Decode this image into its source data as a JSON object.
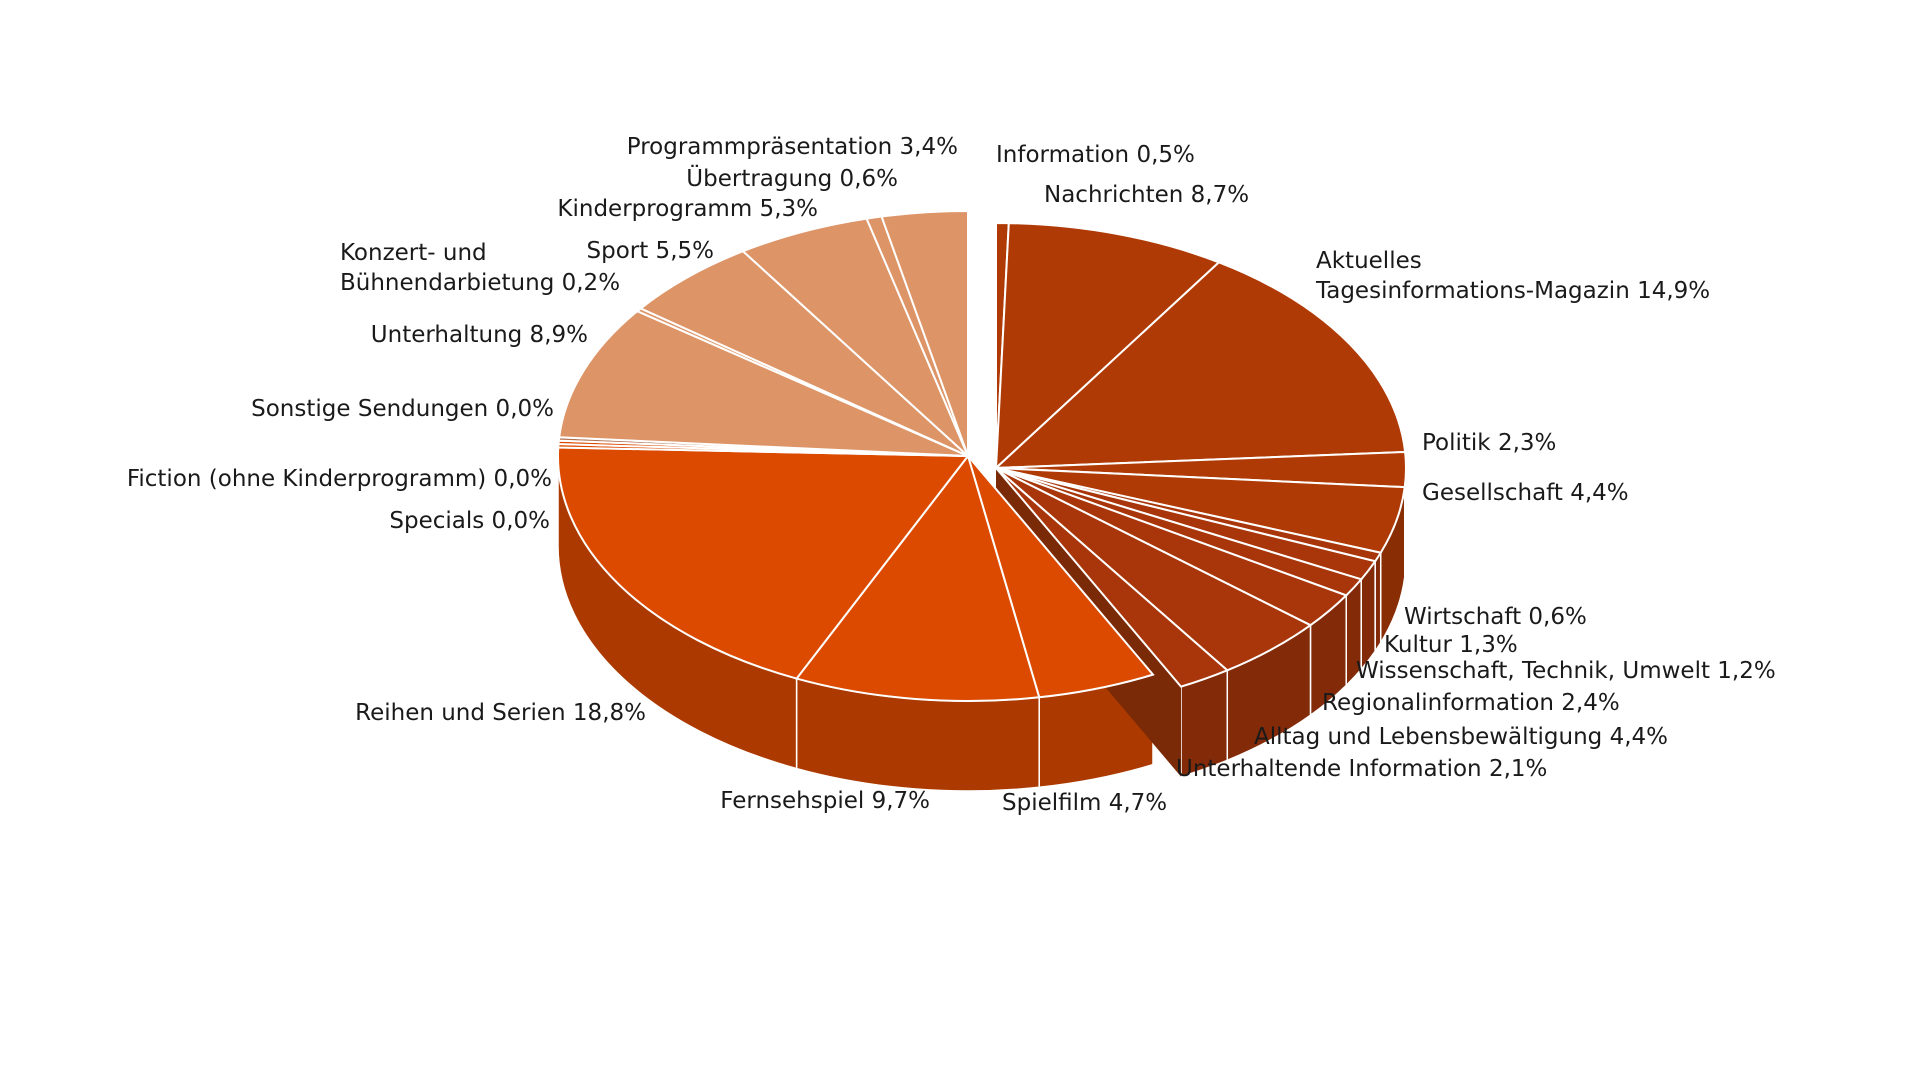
{
  "chart_data": {
    "type": "pie",
    "title": "",
    "legend": "none",
    "slices": [
      {
        "label": "Information",
        "value_text": "0,5%",
        "value": 0.5,
        "color": "#b03a05"
      },
      {
        "label": "Nachrichten",
        "value_text": "8,7%",
        "value": 8.7,
        "color": "#b03a05"
      },
      {
        "label": "Aktuelles Tagesinformations-Magazin",
        "label_lines": [
          "Aktuelles",
          "Tagesinformations-Magazin"
        ],
        "value_text": "14,9%",
        "value": 14.9,
        "color": "#b03a05"
      },
      {
        "label": "Politik",
        "value_text": "2,3%",
        "value": 2.3,
        "color": "#b03a05"
      },
      {
        "label": "Gesellschaft",
        "value_text": "4,4%",
        "value": 4.4,
        "color": "#b03a05"
      },
      {
        "label": "Wirtschaft",
        "value_text": "0,6%",
        "value": 0.6,
        "color": "#a8360a"
      },
      {
        "label": "Kultur",
        "value_text": "1,3%",
        "value": 1.3,
        "color": "#a8360a"
      },
      {
        "label": "Wissenschaft, Technik, Umwelt",
        "value_text": "1,2%",
        "value": 1.2,
        "color": "#a8360a"
      },
      {
        "label": "Regionalinformation",
        "value_text": "2,4%",
        "value": 2.4,
        "color": "#a8360a"
      },
      {
        "label": "Alltag und Lebensbewältigung",
        "value_text": "4,4%",
        "value": 4.4,
        "color": "#a8360a"
      },
      {
        "label": "Unterhaltende Information",
        "value_text": "2,1%",
        "value": 2.1,
        "color": "#a8360a"
      },
      {
        "label": "Spielfilm",
        "value_text": "4,7%",
        "value": 4.7,
        "color": "#dc4a00"
      },
      {
        "label": "Fernsehspiel",
        "value_text": "9,7%",
        "value": 9.7,
        "color": "#dc4a00"
      },
      {
        "label": "Reihen und Serien",
        "value_text": "18,8%",
        "value": 18.8,
        "color": "#dc4a00"
      },
      {
        "label": "Specials",
        "value_text": "0,0%",
        "value": 0.0,
        "color": "#dc4a00"
      },
      {
        "label": "Fiction (ohne Kinderprogramm)",
        "value_text": "0,0%",
        "value": 0.0,
        "color": "#dc4a00"
      },
      {
        "label": "Sonstige Sendungen",
        "value_text": "0,0%",
        "value": 0.0,
        "color": "#b07050"
      },
      {
        "label": "Unterhaltung",
        "value_text": "8,9%",
        "value": 8.9,
        "color": "#dd9466"
      },
      {
        "label": "Konzert- und Bühnendarbietung",
        "label_lines": [
          "Konzert- und",
          "Bühnendarbietung"
        ],
        "value_text": "0,2%",
        "value": 0.2,
        "color": "#dd9466"
      },
      {
        "label": "Sport",
        "value_text": "5,5%",
        "value": 5.5,
        "color": "#dd9466"
      },
      {
        "label": "Kinderprogramm",
        "value_text": "5,3%",
        "value": 5.3,
        "color": "#dd9466"
      },
      {
        "label": "Übertragung",
        "value_text": "0,6%",
        "value": 0.6,
        "color": "#dd9466"
      },
      {
        "label": "Programmpräsentation",
        "value_text": "3,4%",
        "value": 3.4,
        "color": "#dd9466"
      }
    ]
  }
}
